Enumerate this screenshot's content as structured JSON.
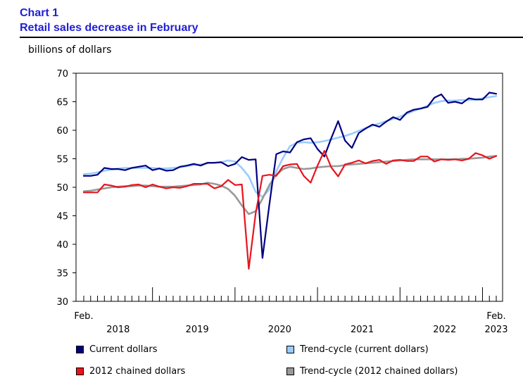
{
  "header": {
    "chart_number": "Chart 1",
    "title": "Retail sales decrease in February"
  },
  "chart_data": {
    "type": "line",
    "title": "Retail sales decrease in February",
    "ylabel": "billions of dollars",
    "xlabel": "",
    "ylim": [
      30,
      70
    ],
    "y_ticks": [
      30,
      35,
      40,
      45,
      50,
      55,
      60,
      65,
      70
    ],
    "x_start_label": "Feb.",
    "x_end_label": "Feb.",
    "year_labels": [
      "2018",
      "2019",
      "2020",
      "2021",
      "2022",
      "2023"
    ],
    "x": [
      "2018-02",
      "2018-03",
      "2018-04",
      "2018-05",
      "2018-06",
      "2018-07",
      "2018-08",
      "2018-09",
      "2018-10",
      "2018-11",
      "2018-12",
      "2019-01",
      "2019-02",
      "2019-03",
      "2019-04",
      "2019-05",
      "2019-06",
      "2019-07",
      "2019-08",
      "2019-09",
      "2019-10",
      "2019-11",
      "2019-12",
      "2020-01",
      "2020-02",
      "2020-03",
      "2020-04",
      "2020-05",
      "2020-06",
      "2020-07",
      "2020-08",
      "2020-09",
      "2020-10",
      "2020-11",
      "2020-12",
      "2021-01",
      "2021-02",
      "2021-03",
      "2021-04",
      "2021-05",
      "2021-06",
      "2021-07",
      "2021-08",
      "2021-09",
      "2021-10",
      "2021-11",
      "2021-12",
      "2022-01",
      "2022-02",
      "2022-03",
      "2022-04",
      "2022-05",
      "2022-06",
      "2022-07",
      "2022-08",
      "2022-09",
      "2022-10",
      "2022-11",
      "2022-12",
      "2023-01",
      "2023-02"
    ],
    "series": [
      {
        "name": "Current dollars",
        "color": "#000080",
        "values": [
          52.0,
          52.0,
          52.2,
          53.4,
          53.2,
          53.2,
          53.0,
          53.4,
          53.6,
          53.8,
          53.0,
          53.3,
          52.9,
          53.0,
          53.6,
          53.8,
          54.1,
          53.8,
          54.3,
          54.3,
          54.4,
          53.7,
          54.1,
          55.3,
          54.8,
          54.9,
          37.6,
          47.0,
          55.8,
          56.3,
          56.1,
          57.9,
          58.4,
          58.6,
          56.7,
          55.4,
          58.6,
          61.6,
          58.2,
          56.9,
          59.5,
          60.3,
          61.0,
          60.6,
          61.5,
          62.3,
          61.8,
          63.1,
          63.6,
          63.8,
          64.1,
          65.7,
          66.3,
          64.8,
          65.0,
          64.7,
          65.6,
          65.4,
          65.4,
          66.6,
          66.4
        ]
      },
      {
        "name": "Trend-cycle (current dollars)",
        "color": "#99ccff",
        "values": [
          52.3,
          52.4,
          52.6,
          52.9,
          53.1,
          53.3,
          53.4,
          53.4,
          53.4,
          53.4,
          53.4,
          53.3,
          53.3,
          53.4,
          53.5,
          53.7,
          53.9,
          54.0,
          54.2,
          54.3,
          54.4,
          54.7,
          54.5,
          53.4,
          51.9,
          49.2,
          48.3,
          49.6,
          52.8,
          55.2,
          57.2,
          57.8,
          57.9,
          57.8,
          57.9,
          58.1,
          58.4,
          58.7,
          59.0,
          59.4,
          59.9,
          60.4,
          60.8,
          61.2,
          61.6,
          62.0,
          62.4,
          62.9,
          63.4,
          63.8,
          64.3,
          64.8,
          65.1,
          65.2,
          65.2,
          65.3,
          65.3,
          65.4,
          65.6,
          65.8,
          66.0
        ]
      },
      {
        "name": "2012 chained dollars",
        "color": "#e8141d",
        "values": [
          49.1,
          49.1,
          49.1,
          50.5,
          50.3,
          50.0,
          50.1,
          50.4,
          50.5,
          50.0,
          50.5,
          50.1,
          49.8,
          50.0,
          49.9,
          50.2,
          50.6,
          50.6,
          50.6,
          49.8,
          50.2,
          51.3,
          50.4,
          50.5,
          35.7,
          45.4,
          52.0,
          52.2,
          52.0,
          53.7,
          54.0,
          54.1,
          52.0,
          50.8,
          53.8,
          56.4,
          53.5,
          51.9,
          54.0,
          54.3,
          54.7,
          54.2,
          54.6,
          54.8,
          54.1,
          54.7,
          54.8,
          54.6,
          54.6,
          55.4,
          55.4,
          54.5,
          54.9,
          54.8,
          54.9,
          54.7,
          55.0,
          56.0,
          55.6,
          55.0,
          55.5
        ]
      },
      {
        "name": "Trend-cycle (2012 chained dollars)",
        "color": "#999999",
        "values": [
          49.3,
          49.4,
          49.6,
          49.8,
          50.0,
          50.1,
          50.2,
          50.2,
          50.3,
          50.3,
          50.2,
          50.1,
          50.1,
          50.1,
          50.2,
          50.3,
          50.4,
          50.5,
          50.8,
          50.6,
          50.3,
          49.7,
          48.5,
          46.8,
          45.3,
          45.8,
          48.0,
          50.4,
          52.2,
          53.2,
          53.6,
          53.4,
          53.2,
          53.3,
          53.5,
          53.6,
          53.7,
          53.7,
          53.9,
          54.0,
          54.1,
          54.2,
          54.3,
          54.4,
          54.5,
          54.6,
          54.7,
          54.8,
          54.9,
          54.9,
          54.9,
          54.9,
          54.9,
          54.9,
          54.9,
          55.0,
          55.0,
          55.1,
          55.2,
          55.4,
          55.5
        ]
      }
    ],
    "legend_position": "bottom",
    "grid": false
  }
}
